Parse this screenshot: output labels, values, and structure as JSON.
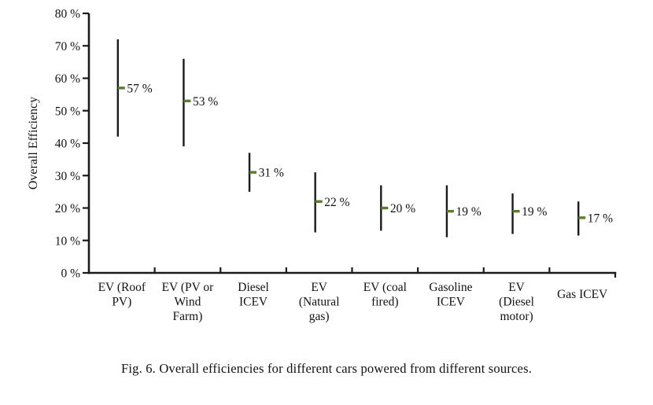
{
  "figure": {
    "caption": "Fig. 6. Overall efficiencies for different cars powered from different sources."
  },
  "chart_data": {
    "type": "line",
    "variant": "high-low-range",
    "title": "",
    "xlabel": "",
    "ylabel": "Overall Efficiency",
    "ylim": [
      0,
      80
    ],
    "ytick_step": 10,
    "ytick_labels": [
      "0 %",
      "10 %",
      "20 %",
      "30 %",
      "40 %",
      "50 %",
      "60 %",
      "70 %",
      "80 %"
    ],
    "grid": false,
    "legend": "none",
    "line_color": "#1a1a1a",
    "marker_color": "#5a7a33",
    "categories": [
      "EV (Roof PV)",
      "EV (PV or Wind Farm)",
      "Diesel ICEV",
      "EV (Natural gas)",
      "EV (coal fired)",
      "Gasoline ICEV",
      "EV (Diesel motor)",
      "Gas ICEV"
    ],
    "category_lines": [
      [
        "EV (Roof",
        "PV)"
      ],
      [
        "EV (PV or",
        "Wind",
        "Farm)"
      ],
      [
        "Diesel",
        "ICEV"
      ],
      [
        "EV",
        "(Natural",
        "gas)"
      ],
      [
        "EV (coal",
        "fired)"
      ],
      [
        "Gasoline",
        "ICEV"
      ],
      [
        "EV",
        "(Diesel",
        "motor)"
      ],
      [
        "Gas ICEV"
      ]
    ],
    "series": [
      {
        "name": "Overall Efficiency",
        "values": [
          57,
          53,
          31,
          22,
          20,
          19,
          19,
          17
        ],
        "value_labels": [
          "57 %",
          "53 %",
          "31 %",
          "22 %",
          "20 %",
          "19 %",
          "19 %",
          "17 %"
        ],
        "range_low": [
          42,
          39,
          25,
          12.5,
          13,
          11,
          12,
          11.5
        ],
        "range_high": [
          72,
          66,
          37,
          31,
          27,
          27,
          24.5,
          22
        ]
      }
    ]
  }
}
